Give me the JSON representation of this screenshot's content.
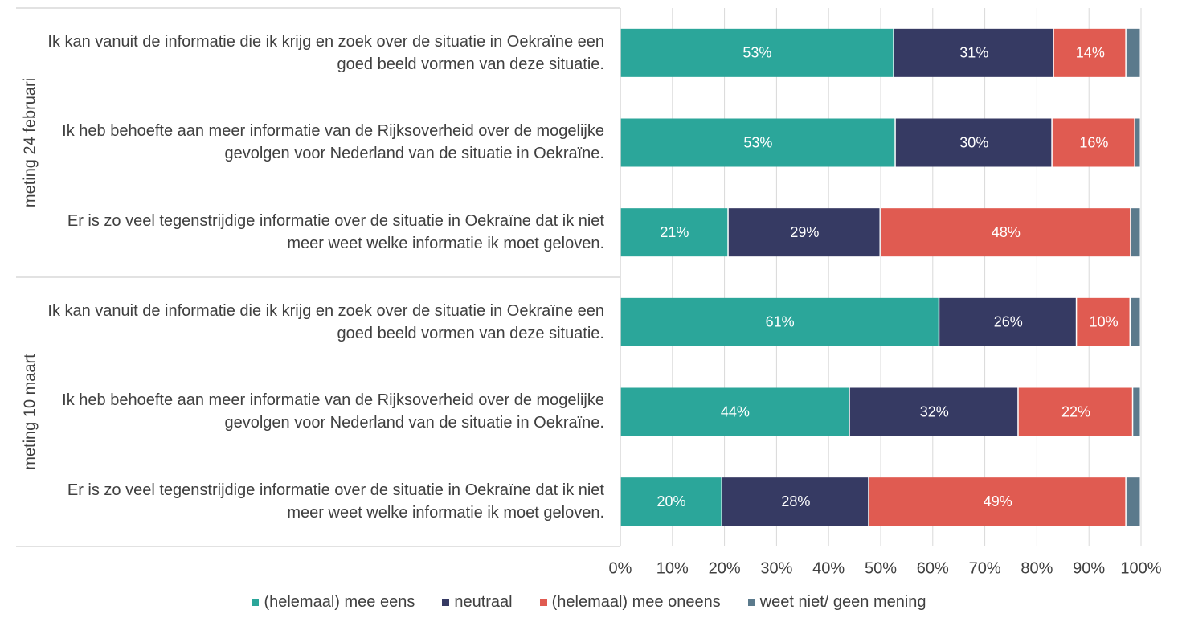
{
  "chart_data": {
    "type": "bar",
    "orientation": "horizontal",
    "stacked": true,
    "groups": [
      {
        "name": "meting 24 februari",
        "categories": [
          "Ik kan vanuit de informatie die ik krijg en zoek over de situatie in Oekraïne een goed beeld vormen van deze situatie.",
          "Ik heb behoefte aan meer informatie van de Rijksoverheid over de mogelijke gevolgen voor Nederland van de situatie in Oekraïne.",
          "Er is zo veel tegenstrijdige informatie over de situatie in Oekraïne dat ik niet meer weet welke informatie ik moet geloven."
        ]
      },
      {
        "name": "meting 10 maart",
        "categories": [
          "Ik kan vanuit de informatie die ik krijg en zoek over de situatie in Oekraïne een goed beeld vormen van deze situatie.",
          "Ik heb behoefte aan meer informatie van de Rijksoverheid over de mogelijke gevolgen voor Nederland van de situatie in Oekraïne.",
          "Er is zo veel tegenstrijdige informatie over de situatie in Oekraïne dat ik niet meer weet welke informatie ik moet geloven."
        ]
      }
    ],
    "series": [
      {
        "name": "(helemaal) mee eens",
        "color": "#2ba69a",
        "values": [
          52.6,
          52.9,
          20.8,
          61.3,
          44.1,
          19.6
        ],
        "value_labels": [
          "53%",
          "53%",
          "21%",
          "61%",
          "44%",
          "20%"
        ]
      },
      {
        "name": "neutraal",
        "color": "#363a63",
        "values": [
          30.7,
          30.1,
          29.2,
          26.4,
          32.4,
          28.2
        ],
        "value_labels": [
          "31%",
          "30%",
          "29%",
          "26%",
          "32%",
          "28%"
        ]
      },
      {
        "name": "(helemaal) mee oneens",
        "color": "#e05b51",
        "values": [
          13.9,
          15.9,
          48.1,
          10.3,
          22.0,
          49.4
        ],
        "value_labels": [
          "14%",
          "16%",
          "48%",
          "10%",
          "22%",
          "49%"
        ]
      },
      {
        "name": "weet niet/ geen mening",
        "color": "#5b7a8c",
        "values": [
          2.8,
          1.1,
          1.9,
          2.0,
          1.5,
          2.8
        ]
      }
    ],
    "xlim": [
      0,
      100
    ],
    "xticks": [
      {
        "value": 0,
        "label": "0%"
      },
      {
        "value": 10,
        "label": "10%"
      },
      {
        "value": 20,
        "label": "20%"
      },
      {
        "value": 30,
        "label": "30%"
      },
      {
        "value": 40,
        "label": "40%"
      },
      {
        "value": 50,
        "label": "50%"
      },
      {
        "value": 60,
        "label": "60%"
      },
      {
        "value": 70,
        "label": "70%"
      },
      {
        "value": 80,
        "label": "80%"
      },
      {
        "value": 90,
        "label": "90%"
      },
      {
        "value": 100,
        "label": "100%"
      }
    ],
    "grid": true,
    "legend": "bottom"
  }
}
